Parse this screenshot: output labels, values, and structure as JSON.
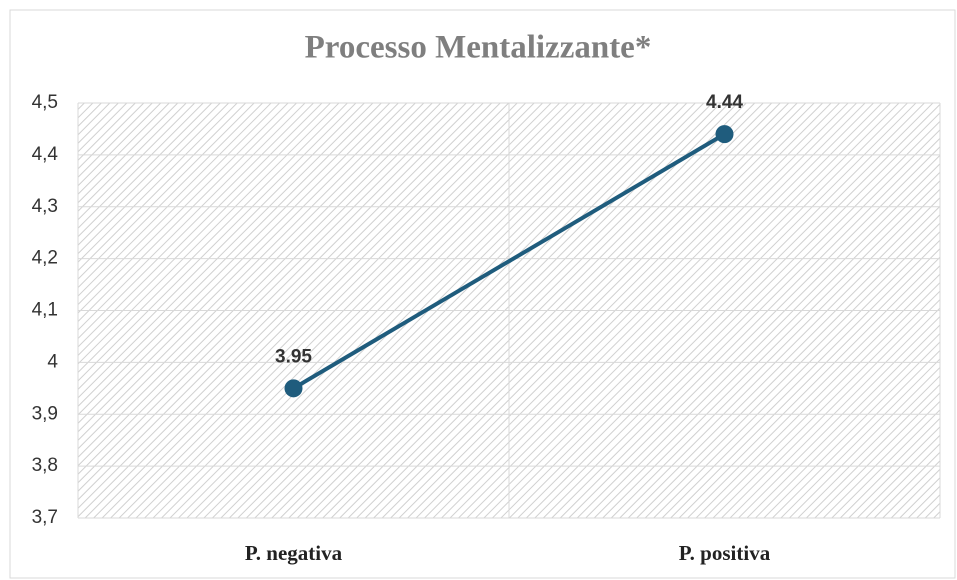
{
  "chart_data": {
    "type": "line",
    "title": "Processo Mentalizzante*",
    "categories": [
      "P. negativa",
      "P. positiva"
    ],
    "series": [
      {
        "name": "Processo Mentalizzante",
        "color": "#1f5c7d",
        "values": [
          3.95,
          4.44
        ]
      }
    ],
    "ylim": [
      3.7,
      4.5
    ],
    "yticks": [
      {
        "value": 3.7,
        "label": "3,7"
      },
      {
        "value": 3.8,
        "label": "3,8"
      },
      {
        "value": 3.9,
        "label": "3,9"
      },
      4,
      {
        "value": 4.1,
        "label": "4,1"
      },
      {
        "value": 4.2,
        "label": "4,2"
      },
      {
        "value": 4.3,
        "label": "4,3"
      },
      {
        "value": 4.4,
        "label": "4,4"
      },
      {
        "value": 4.5,
        "label": "4,5"
      }
    ],
    "grid": true
  }
}
